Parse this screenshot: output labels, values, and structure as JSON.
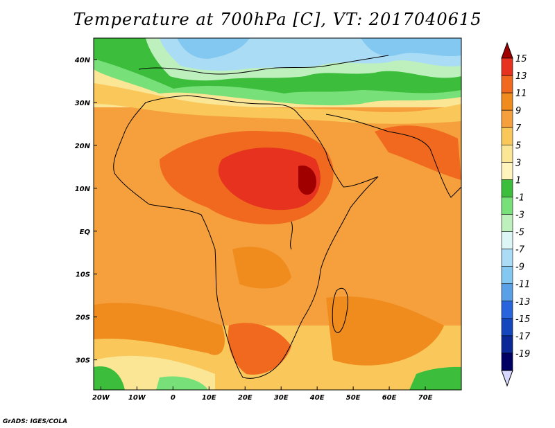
{
  "title": "Temperature at 700hPa [C], VT: 2017040615",
  "credit": "GrADS: IGES/COLA",
  "map": {
    "lat_labels": [
      "40N",
      "30N",
      "20N",
      "10N",
      "EQ",
      "10S",
      "20S",
      "30S"
    ],
    "lon_labels": [
      "20W",
      "10W",
      "0",
      "10E",
      "20E",
      "30E",
      "40E",
      "50E",
      "60E",
      "70E"
    ],
    "lon_range": [
      -22,
      80
    ],
    "lat_range": [
      -37,
      45
    ]
  },
  "colorbar": {
    "labels": [
      "15",
      "13",
      "11",
      "9",
      "7",
      "5",
      "3",
      "1",
      "-1",
      "-3",
      "-5",
      "-7",
      "-9",
      "-11",
      "-13",
      "-15",
      "-17",
      "-19"
    ],
    "colors": [
      "#a00000",
      "#e6321e",
      "#f0691e",
      "#f08c1e",
      "#f5a03c",
      "#fac85a",
      "#fae695",
      "#fff5bc",
      "#3cbe3c",
      "#78e078",
      "#bef0be",
      "#dcf5f5",
      "#aadcf5",
      "#82c8f0",
      "#5aa0e6",
      "#2864dc",
      "#1446be",
      "#0a2896",
      "#000064",
      "#d7d7ff"
    ]
  }
}
